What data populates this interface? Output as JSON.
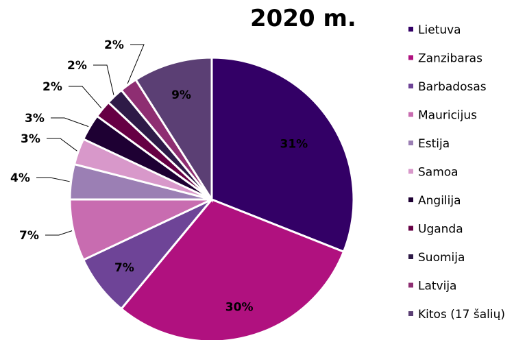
{
  "chart_data": {
    "type": "pie",
    "title": "2020 m.",
    "categories": [
      "Lietuva",
      "Zanzibaras",
      "Barbadosas",
      "Mauricijus",
      "Estija",
      "Samoa",
      "Angilija",
      "Uganda",
      "Suomija",
      "Latvija",
      "Kitos (17 šalių)"
    ],
    "values": [
      31,
      30,
      7,
      7,
      4,
      3,
      3,
      2,
      2,
      2,
      9
    ],
    "data_labels": [
      "31%",
      "30%",
      "7%",
      "7%",
      "4%",
      "3%",
      "3%",
      "2%",
      "2%",
      "2%",
      "9%"
    ],
    "colors": [
      "#330066",
      "#B0117F",
      "#6E4497",
      "#C86CB0",
      "#9B7FB4",
      "#D898CA",
      "#1E0033",
      "#660044",
      "#2E1A47",
      "#8E2E72",
      "#5B3F74"
    ],
    "legend_position": "right"
  }
}
